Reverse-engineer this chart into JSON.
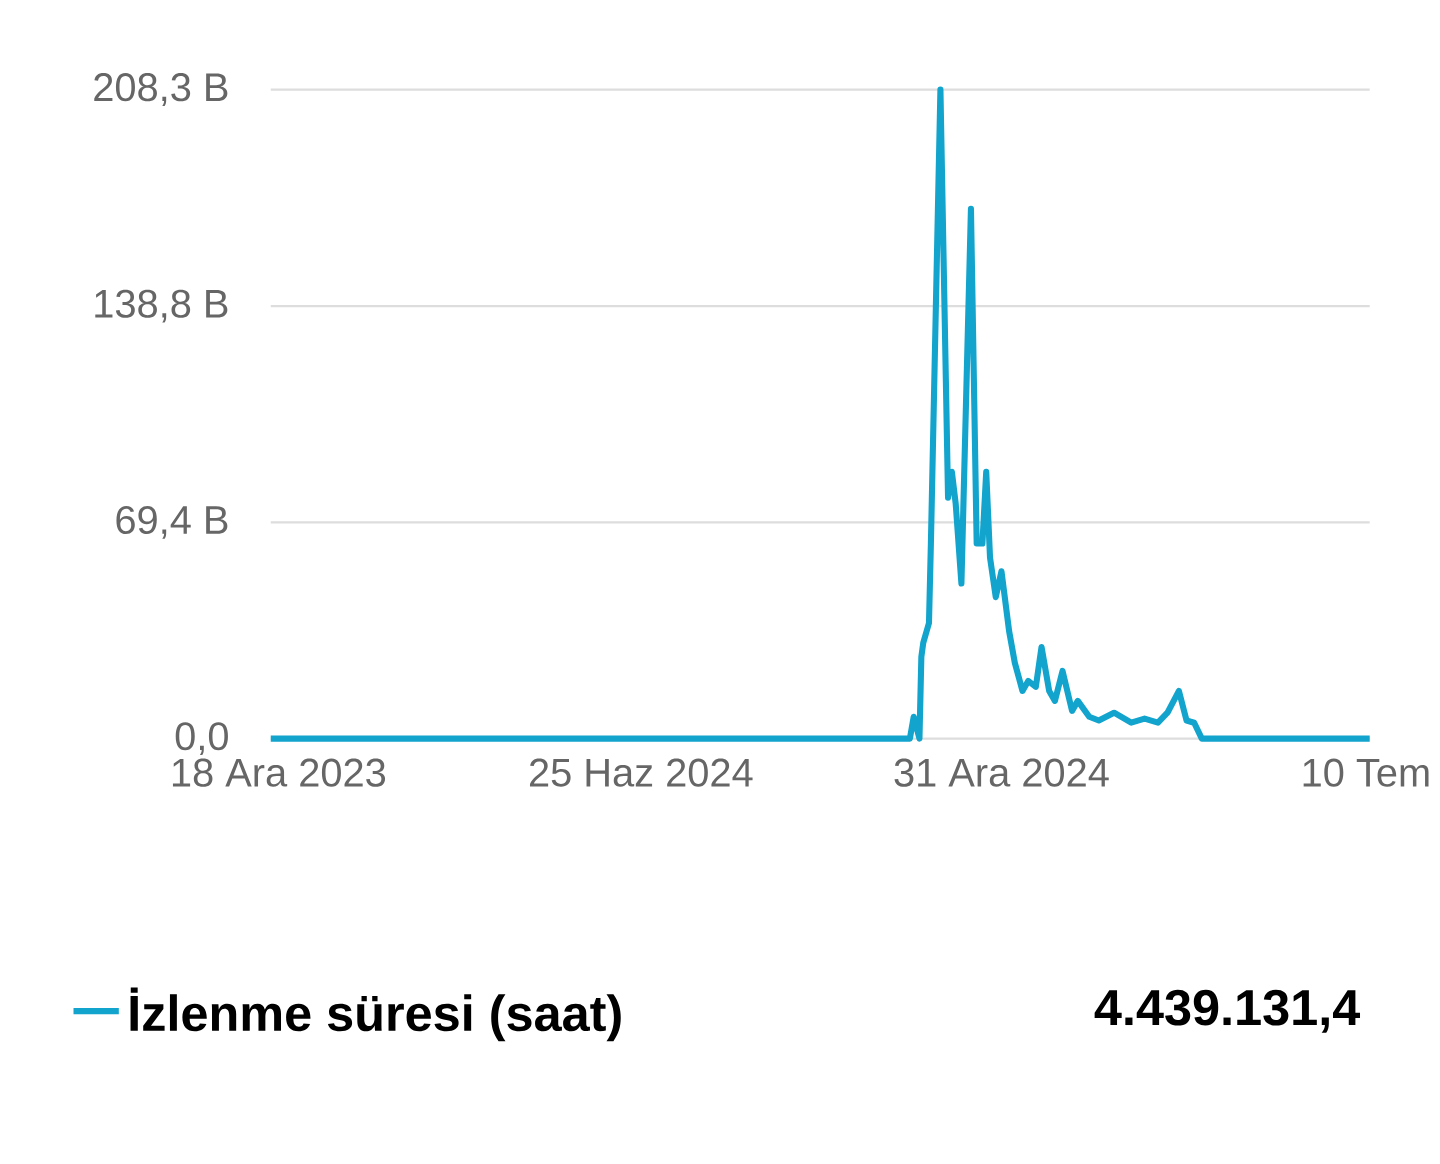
{
  "chart_data": {
    "type": "line",
    "x": [
      "2023-12-14",
      "2024-11-13",
      "2024-11-15",
      "2024-11-18",
      "2024-11-19",
      "2024-11-20",
      "2024-11-23",
      "2024-11-24",
      "2024-11-29",
      "2024-12-03",
      "2024-12-05",
      "2024-12-07",
      "2024-12-10",
      "2024-12-15",
      "2024-12-18",
      "2024-12-21",
      "2024-12-23",
      "2024-12-25",
      "2024-12-28",
      "2024-12-31",
      "2025-01-04",
      "2025-01-07",
      "2025-01-11",
      "2025-01-14",
      "2025-01-18",
      "2025-01-21",
      "2025-01-25",
      "2025-01-28",
      "2025-02-01",
      "2025-02-06",
      "2025-02-09",
      "2025-02-15",
      "2025-02-20",
      "2025-02-28",
      "2025-03-09",
      "2025-03-16",
      "2025-03-23",
      "2025-03-28",
      "2025-04-03",
      "2025-04-07",
      "2025-04-11",
      "2025-04-15",
      "2025-07-12"
    ],
    "series": [
      {
        "name": "İzlenme süresi (saat)",
        "color": "#12a4cc",
        "values": [
          0,
          0,
          7.0,
          0,
          26.2,
          30.7,
          37.1,
          62.6,
          208.3,
          77.3,
          85.6,
          75.4,
          49.8,
          170.0,
          62.6,
          62.6,
          85.6,
          58.1,
          45.4,
          53.7,
          34.5,
          24.3,
          15.3,
          18.5,
          16.6,
          29.4,
          15.3,
          12.1,
          21.7,
          8.9,
          12.1,
          7.0,
          5.8,
          8.3,
          5.1,
          6.4,
          5.1,
          8.3,
          15.3,
          5.8,
          5.1,
          0,
          0
        ]
      }
    ],
    "xlim": [
      "2023-12-14",
      "2025-07-12"
    ],
    "xticks": [
      {
        "value": "2023-12-18",
        "label": "18 Ara 2023"
      },
      {
        "value": "2024-06-25",
        "label": "25 Haz 2024"
      },
      {
        "value": "2024-12-31",
        "label": "31 Ara 2024"
      },
      {
        "value": "2025-07-10",
        "label": "10 Tem"
      }
    ],
    "ylim": [
      0,
      208.3
    ],
    "yticks": [
      {
        "value": 0,
        "label": "0,0"
      },
      {
        "value": 69.4,
        "label": "69,4 B"
      },
      {
        "value": 138.8,
        "label": "138,8 B"
      },
      {
        "value": 208.3,
        "label": "208,3 B"
      }
    ],
    "grid": "y",
    "legend": "bottom",
    "annotations": [
      "4.439.131,4"
    ]
  }
}
